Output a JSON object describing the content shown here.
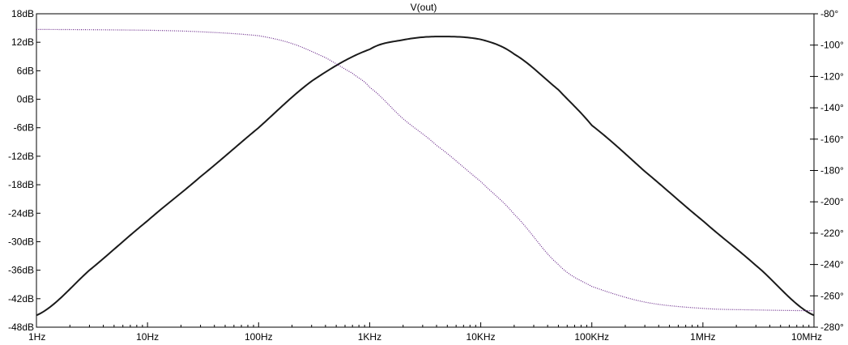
{
  "chart_data": {
    "type": "line",
    "title": "V(out)",
    "xscale": "log",
    "xlim": [
      1,
      10000000
    ],
    "x_ticks": [
      {
        "value": 1,
        "label": "1Hz"
      },
      {
        "value": 10,
        "label": "10Hz"
      },
      {
        "value": 100,
        "label": "100Hz"
      },
      {
        "value": 1000,
        "label": "1KHz"
      },
      {
        "value": 10000,
        "label": "10KHz"
      },
      {
        "value": 100000,
        "label": "100KHz"
      },
      {
        "value": 1000000,
        "label": "1MHz"
      },
      {
        "value": 10000000,
        "label": "10MHz"
      }
    ],
    "y_left": {
      "unit": "dB",
      "lim": [
        -48,
        18
      ],
      "ticks": [
        {
          "value": 18,
          "label": "18dB"
        },
        {
          "value": 12,
          "label": "12dB"
        },
        {
          "value": 6,
          "label": "6dB"
        },
        {
          "value": 0,
          "label": "0dB"
        },
        {
          "value": -6,
          "label": "-6dB"
        },
        {
          "value": -12,
          "label": "-12dB"
        },
        {
          "value": -18,
          "label": "-18dB"
        },
        {
          "value": -24,
          "label": "-24dB"
        },
        {
          "value": -30,
          "label": "-30dB"
        },
        {
          "value": -36,
          "label": "-36dB"
        },
        {
          "value": -42,
          "label": "-42dB"
        },
        {
          "value": -48,
          "label": "-48dB"
        }
      ]
    },
    "y_right": {
      "unit": "degrees",
      "lim": [
        -280,
        -80
      ],
      "ticks": [
        {
          "value": -80,
          "label": "-80°"
        },
        {
          "value": -100,
          "label": "-100°"
        },
        {
          "value": -120,
          "label": "-120°"
        },
        {
          "value": -140,
          "label": "-140°"
        },
        {
          "value": -160,
          "label": "-160°"
        },
        {
          "value": -180,
          "label": "-180°"
        },
        {
          "value": -200,
          "label": "-200°"
        },
        {
          "value": -220,
          "label": "-220°"
        },
        {
          "value": -240,
          "label": "-240°"
        },
        {
          "value": -260,
          "label": "-260°"
        },
        {
          "value": -280,
          "label": "-280°"
        }
      ]
    },
    "grid": false,
    "series": [
      {
        "axis": "left",
        "style": "solid",
        "color": "#1a1a1a",
        "x": [
          1,
          3,
          10,
          30,
          100,
          300,
          1000,
          2000,
          4000,
          10000,
          20000,
          50000,
          100000,
          300000,
          1000000,
          3000000,
          10000000
        ],
        "y": [
          -45.5,
          -36.0,
          -25.6,
          -16.3,
          -6.0,
          3.8,
          10.5,
          12.5,
          13.2,
          12.6,
          9.5,
          2.0,
          -5.5,
          -15.2,
          -25.6,
          -35.0,
          -45.5
        ]
      },
      {
        "axis": "right",
        "style": "dotted",
        "color": "#6a2a8a",
        "x": [
          1,
          10,
          30,
          100,
          200,
          400,
          700,
          1000,
          2000,
          4000,
          10000,
          20000,
          50000,
          100000,
          300000,
          1000000,
          3000000,
          10000000
        ],
        "y": [
          -90.0,
          -90.5,
          -91.5,
          -94.0,
          -99.0,
          -108.0,
          -118.0,
          -127.0,
          -147.0,
          -164.0,
          -187.0,
          -208.0,
          -240.0,
          -254.0,
          -264.0,
          -268.0,
          -269.0,
          -269.5
        ]
      }
    ]
  }
}
